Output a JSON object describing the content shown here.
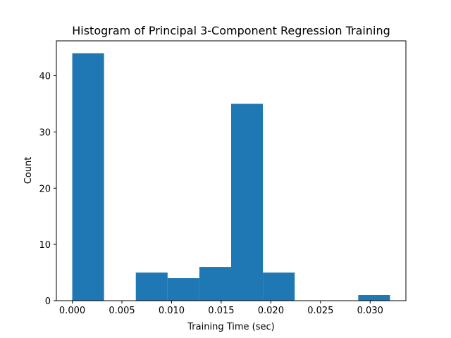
{
  "chart_data": {
    "type": "bar",
    "title": "Histogram of Principal 3-Component Regression Training",
    "xlabel": "Training Time (sec)",
    "ylabel": "Count",
    "bin_edges": [
      0.0,
      0.0032,
      0.0064,
      0.0096,
      0.0128,
      0.016,
      0.0192,
      0.0224,
      0.0256,
      0.0288,
      0.032
    ],
    "values": [
      44,
      0,
      5,
      4,
      6,
      35,
      5,
      0,
      0,
      1
    ],
    "xlim": [
      -0.0016,
      0.0336
    ],
    "ylim": [
      0,
      46.2
    ],
    "xticks": [
      0.0,
      0.005,
      0.01,
      0.015,
      0.02,
      0.025,
      0.03
    ],
    "xtick_labels": [
      "0.000",
      "0.005",
      "0.010",
      "0.015",
      "0.020",
      "0.025",
      "0.030"
    ],
    "yticks": [
      0,
      10,
      20,
      30,
      40
    ],
    "ytick_labels": [
      "0",
      "10",
      "20",
      "30",
      "40"
    ],
    "grid": false,
    "bar_color": "#1f77b4"
  }
}
